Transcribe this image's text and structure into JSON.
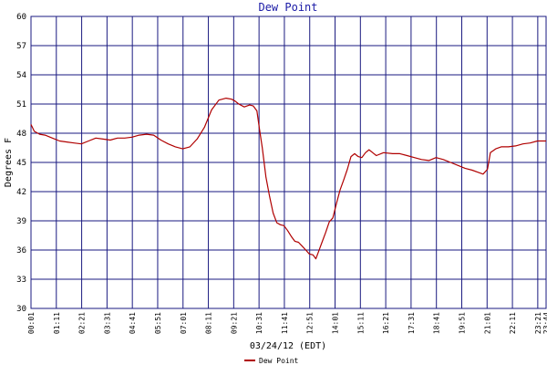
{
  "chart_data": {
    "type": "line",
    "title": "Dew Point",
    "xlabel": "03/24/12 (EDT)",
    "ylabel": "Degrees F",
    "ylim": [
      30,
      60
    ],
    "yticks": [
      30,
      33,
      36,
      39,
      42,
      45,
      48,
      51,
      54,
      57,
      60
    ],
    "xlim": [
      1,
      1424
    ],
    "xticks": [
      {
        "label": "00:01",
        "minute": 1
      },
      {
        "label": "01:11",
        "minute": 71
      },
      {
        "label": "02:21",
        "minute": 141
      },
      {
        "label": "03:31",
        "minute": 211
      },
      {
        "label": "04:41",
        "minute": 281
      },
      {
        "label": "05:51",
        "minute": 351
      },
      {
        "label": "07:01",
        "minute": 421
      },
      {
        "label": "08:11",
        "minute": 491
      },
      {
        "label": "09:21",
        "minute": 561
      },
      {
        "label": "10:31",
        "minute": 631
      },
      {
        "label": "11:41",
        "minute": 701
      },
      {
        "label": "12:51",
        "minute": 771
      },
      {
        "label": "14:01",
        "minute": 841
      },
      {
        "label": "15:11",
        "minute": 911
      },
      {
        "label": "16:21",
        "minute": 981
      },
      {
        "label": "17:31",
        "minute": 1051
      },
      {
        "label": "18:41",
        "minute": 1121
      },
      {
        "label": "19:51",
        "minute": 1191
      },
      {
        "label": "21:01",
        "minute": 1261
      },
      {
        "label": "22:11",
        "minute": 1331
      },
      {
        "label": "23:21",
        "minute": 1401
      },
      {
        "label": "23:44",
        "minute": 1424
      }
    ],
    "grid": true,
    "legend_position": "bottom-center",
    "colors": {
      "line": "#b00000",
      "grid": "#1a1a80",
      "title": "#1a1aa6"
    },
    "series": [
      {
        "name": "Dew Point",
        "points": [
          [
            1,
            48.9
          ],
          [
            10,
            48.2
          ],
          [
            25,
            47.9
          ],
          [
            40,
            47.8
          ],
          [
            60,
            47.5
          ],
          [
            80,
            47.2
          ],
          [
            100,
            47.1
          ],
          [
            120,
            47.0
          ],
          [
            140,
            46.9
          ],
          [
            160,
            47.2
          ],
          [
            180,
            47.5
          ],
          [
            200,
            47.4
          ],
          [
            220,
            47.3
          ],
          [
            240,
            47.5
          ],
          [
            260,
            47.5
          ],
          [
            280,
            47.6
          ],
          [
            300,
            47.8
          ],
          [
            320,
            47.9
          ],
          [
            340,
            47.8
          ],
          [
            360,
            47.3
          ],
          [
            380,
            46.9
          ],
          [
            400,
            46.6
          ],
          [
            420,
            46.4
          ],
          [
            440,
            46.6
          ],
          [
            460,
            47.4
          ],
          [
            480,
            48.6
          ],
          [
            500,
            50.4
          ],
          [
            520,
            51.4
          ],
          [
            540,
            51.6
          ],
          [
            555,
            51.5
          ],
          [
            565,
            51.3
          ],
          [
            575,
            51.0
          ],
          [
            590,
            50.7
          ],
          [
            605,
            50.9
          ],
          [
            615,
            50.8
          ],
          [
            625,
            50.3
          ],
          [
            632,
            48.5
          ],
          [
            640,
            46.5
          ],
          [
            650,
            43.5
          ],
          [
            660,
            41.5
          ],
          [
            670,
            39.8
          ],
          [
            680,
            38.8
          ],
          [
            690,
            38.6
          ],
          [
            700,
            38.5
          ],
          [
            710,
            38.0
          ],
          [
            720,
            37.4
          ],
          [
            730,
            36.9
          ],
          [
            740,
            36.8
          ],
          [
            750,
            36.4
          ],
          [
            760,
            36.0
          ],
          [
            770,
            35.6
          ],
          [
            780,
            35.5
          ],
          [
            788,
            35.1
          ],
          [
            795,
            35.8
          ],
          [
            805,
            36.8
          ],
          [
            815,
            37.8
          ],
          [
            825,
            38.9
          ],
          [
            835,
            39.3
          ],
          [
            845,
            40.8
          ],
          [
            855,
            42.2
          ],
          [
            865,
            43.2
          ],
          [
            875,
            44.3
          ],
          [
            885,
            45.6
          ],
          [
            895,
            45.9
          ],
          [
            905,
            45.6
          ],
          [
            915,
            45.5
          ],
          [
            925,
            46.0
          ],
          [
            935,
            46.3
          ],
          [
            945,
            46.0
          ],
          [
            955,
            45.7
          ],
          [
            975,
            46.0
          ],
          [
            1000,
            45.9
          ],
          [
            1020,
            45.9
          ],
          [
            1040,
            45.7
          ],
          [
            1060,
            45.5
          ],
          [
            1080,
            45.3
          ],
          [
            1100,
            45.2
          ],
          [
            1120,
            45.5
          ],
          [
            1140,
            45.3
          ],
          [
            1160,
            45.0
          ],
          [
            1180,
            44.7
          ],
          [
            1200,
            44.4
          ],
          [
            1220,
            44.2
          ],
          [
            1235,
            44.0
          ],
          [
            1250,
            43.8
          ],
          [
            1262,
            44.3
          ],
          [
            1270,
            46.0
          ],
          [
            1285,
            46.4
          ],
          [
            1300,
            46.6
          ],
          [
            1320,
            46.6
          ],
          [
            1340,
            46.7
          ],
          [
            1360,
            46.9
          ],
          [
            1380,
            47.0
          ],
          [
            1400,
            47.2
          ],
          [
            1424,
            47.2
          ]
        ]
      }
    ]
  }
}
